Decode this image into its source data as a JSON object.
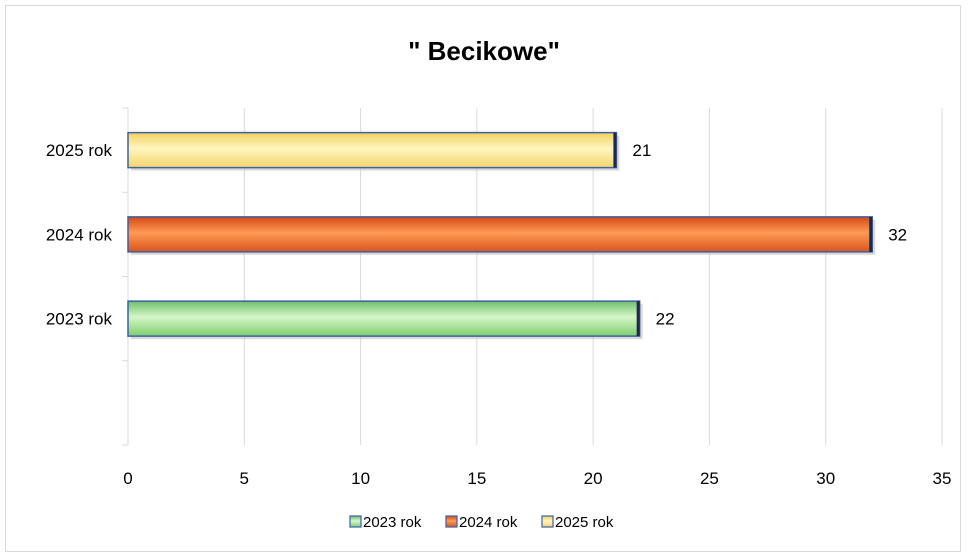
{
  "chart_data": {
    "type": "bar",
    "orientation": "horizontal",
    "title": "\" Becikowe\"",
    "categories": [
      "2023 rok",
      "2024 rok",
      "2025 rok"
    ],
    "values": [
      22,
      32,
      21
    ],
    "colors": [
      "#92d050",
      "#e0622c",
      "#f5d76e"
    ],
    "xlim": [
      0,
      35
    ],
    "x_ticks": [
      0,
      5,
      10,
      15,
      20,
      25,
      30,
      35
    ],
    "grid": "vertical",
    "legend": {
      "position": "bottom",
      "entries": [
        "2023 rok",
        "2024 rok",
        "2025 rok"
      ]
    }
  }
}
